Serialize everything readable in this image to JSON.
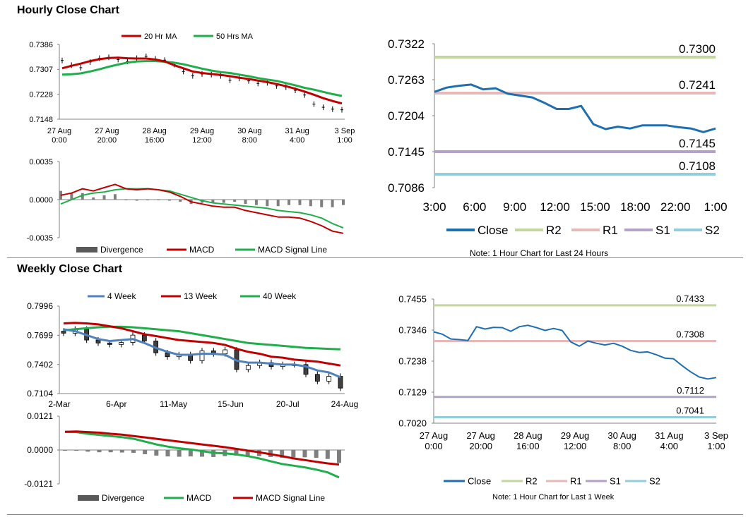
{
  "colors": {
    "red": "#c00000",
    "green": "#1fae4b",
    "blue": "#1f6fb0",
    "bluelight": "#4f81bd",
    "r2": "#c3d69b",
    "r1": "#e6b9b8",
    "s1": "#b3a2c7",
    "s2": "#93cddd",
    "gray": "#7f7f7f"
  },
  "hourly": {
    "title": "Hourly Close Chart",
    "note": "Note: 1 Hour Chart for Last 24 Hours"
  },
  "weekly": {
    "title": "Weekly Close Chart",
    "note": "Note: 1 Hour Chart for Last 1 Week"
  },
  "chart_data": [
    {
      "id": "hourly_price",
      "type": "line",
      "title": "",
      "legend": [
        "20 Hr MA",
        "50 Hrs MA"
      ],
      "legend_position": "top",
      "x_ticks": [
        [
          "27 Aug",
          "0:00"
        ],
        [
          "27 Aug",
          "20:00"
        ],
        [
          "28 Aug",
          "16:00"
        ],
        [
          "29 Aug",
          "12:00"
        ],
        [
          "30 Aug",
          "8:00"
        ],
        [
          "31 Aug",
          "4:00"
        ],
        [
          "3 Sep",
          "1:00"
        ]
      ],
      "y_ticks": [
        "0.7386",
        "0.7307",
        "0.7228",
        "0.7148"
      ],
      "ylim": [
        0.7148,
        0.7386
      ],
      "series": [
        {
          "name": "Close",
          "values": [
            0.7335,
            0.732,
            0.7312,
            0.733,
            0.7342,
            0.7345,
            0.7338,
            0.7332,
            0.7342,
            0.7348,
            0.734,
            0.7336,
            0.7322,
            0.73,
            0.7286,
            0.7292,
            0.729,
            0.7286,
            0.7272,
            0.7278,
            0.727,
            0.7262,
            0.7264,
            0.7254,
            0.725,
            0.724,
            0.7225,
            0.7196,
            0.7186,
            0.718,
            0.7178
          ]
        },
        {
          "name": "20 Hr MA",
          "values": [
            0.731,
            0.7318,
            0.7325,
            0.7333,
            0.7339,
            0.7343,
            0.7344,
            0.7342,
            0.7341,
            0.7341,
            0.7338,
            0.7332,
            0.732,
            0.731,
            0.73,
            0.7295,
            0.7292,
            0.7289,
            0.7285,
            0.728,
            0.7276,
            0.7271,
            0.7266,
            0.726,
            0.7253,
            0.7245,
            0.7236,
            0.7226,
            0.7215,
            0.7206,
            0.7198
          ]
        },
        {
          "name": "50 Hrs MA",
          "values": [
            0.729,
            0.7291,
            0.7294,
            0.73,
            0.7307,
            0.7315,
            0.7322,
            0.7328,
            0.7332,
            0.7333,
            0.7333,
            0.7331,
            0.7328,
            0.7323,
            0.7316,
            0.7309,
            0.7303,
            0.7298,
            0.7295,
            0.729,
            0.7285,
            0.7279,
            0.7274,
            0.727,
            0.7263,
            0.7256,
            0.7248,
            0.7242,
            0.7235,
            0.7228,
            0.7222
          ]
        }
      ]
    },
    {
      "id": "hourly_macd",
      "type": "line",
      "legend": [
        "Divergence",
        "MACD",
        "MACD Signal Line"
      ],
      "legend_position": "bottom",
      "y_ticks": [
        "0.0035",
        "0.0000",
        "-0.0035"
      ],
      "ylim": [
        -0.0035,
        0.0035
      ],
      "series": [
        {
          "name": "MACD",
          "values": [
            0.0004,
            0.0006,
            0.001,
            0.0008,
            0.0011,
            0.0014,
            0.001,
            0.0009,
            0.001,
            0.0009,
            0.0007,
            0.0003,
            -0.0002,
            -0.0004,
            -0.0006,
            -0.0007,
            -0.0007,
            -0.001,
            -0.0012,
            -0.0014,
            -0.0016,
            -0.0016,
            -0.0017,
            -0.002,
            -0.0024,
            -0.0029,
            -0.0031
          ]
        },
        {
          "name": "MACD Signal Line",
          "values": [
            -0.0004,
            0.0,
            0.0004,
            0.0006,
            0.0007,
            0.0009,
            0.001,
            0.001,
            0.001,
            0.0009,
            0.0008,
            0.0005,
            0.0002,
            -0.0001,
            -0.0003,
            -0.0004,
            -0.0005,
            -0.0006,
            -0.0007,
            -0.0008,
            -0.001,
            -0.0011,
            -0.0012,
            -0.0014,
            -0.0017,
            -0.0022,
            -0.0026
          ]
        },
        {
          "name": "Divergence",
          "values": [
            0.0008,
            0.0006,
            0.0006,
            0.0002,
            0.0004,
            0.0005,
            0.0,
            -0.0001,
            0.0,
            0.0,
            -0.0001,
            -0.0002,
            -0.0004,
            -0.0003,
            -0.0003,
            -0.0003,
            -0.0002,
            -0.0004,
            -0.0005,
            -0.0006,
            -0.0006,
            -0.0005,
            -0.0005,
            -0.0006,
            -0.0007,
            -0.0007,
            -0.0005
          ]
        }
      ]
    },
    {
      "id": "hourly_levels",
      "type": "line",
      "legend": [
        "Close",
        "R2",
        "R1",
        "S1",
        "S2"
      ],
      "legend_position": "bottom",
      "x_ticks": [
        "3:00",
        "6:00",
        "9:00",
        "12:00",
        "15:00",
        "18:00",
        "22:00",
        "1:00"
      ],
      "y_ticks": [
        "0.7322",
        "0.7263",
        "0.7204",
        "0.7145",
        "0.7086"
      ],
      "ylim": [
        0.7086,
        0.7322
      ],
      "levels": [
        {
          "name": "R2",
          "value": 0.73,
          "label": "0.7300"
        },
        {
          "name": "R1",
          "value": 0.7241,
          "label": "0.7241"
        },
        {
          "name": "S1",
          "value": 0.7145,
          "label": "0.7145"
        },
        {
          "name": "S2",
          "value": 0.7108,
          "label": "0.7108"
        }
      ],
      "series": [
        {
          "name": "Close",
          "values": [
            0.7243,
            0.725,
            0.7253,
            0.7255,
            0.7247,
            0.7249,
            0.724,
            0.7237,
            0.7234,
            0.7225,
            0.7215,
            0.7215,
            0.722,
            0.719,
            0.7182,
            0.7186,
            0.7183,
            0.7188,
            0.7188,
            0.7188,
            0.7185,
            0.7183,
            0.7177,
            0.7183
          ]
        }
      ]
    },
    {
      "id": "weekly_price",
      "type": "line",
      "legend": [
        "4 Week",
        "13 Week",
        "40 Week"
      ],
      "legend_position": "top",
      "x_ticks": [
        "2-Mar",
        "6-Apr",
        "11-May",
        "15-Jun",
        "20-Jul",
        "24-Aug"
      ],
      "y_ticks": [
        "0.7996",
        "0.7699",
        "0.7402",
        "0.7104"
      ],
      "ylim": [
        0.7104,
        0.7996
      ],
      "series": [
        {
          "name": "Close",
          "values": [
            0.772,
            0.776,
            0.765,
            0.762,
            0.7605,
            0.7625,
            0.77,
            0.764,
            0.752,
            0.748,
            0.75,
            0.744,
            0.754,
            0.751,
            0.755,
            0.735,
            0.739,
            0.742,
            0.738,
            0.74,
            0.74,
            0.73,
            0.723,
            0.728,
            0.716
          ]
        },
        {
          "name": "4 Week",
          "values": [
            0.776,
            0.774,
            0.77,
            0.766,
            0.764,
            0.765,
            0.766,
            0.762,
            0.757,
            0.753,
            0.75,
            0.75,
            0.751,
            0.751,
            0.75,
            0.744,
            0.742,
            0.742,
            0.741,
            0.74,
            0.74,
            0.738,
            0.734,
            0.732,
            0.727
          ]
        },
        {
          "name": "13 Week",
          "values": [
            0.782,
            0.7825,
            0.782,
            0.781,
            0.779,
            0.777,
            0.774,
            0.771,
            0.769,
            0.767,
            0.765,
            0.764,
            0.763,
            0.762,
            0.76,
            0.756,
            0.753,
            0.751,
            0.748,
            0.747,
            0.745,
            0.744,
            0.743,
            0.741,
            0.739
          ]
        },
        {
          "name": "40 Week",
          "values": [
            0.775,
            0.776,
            0.777,
            0.778,
            0.7785,
            0.7785,
            0.778,
            0.777,
            0.776,
            0.775,
            0.774,
            0.772,
            0.77,
            0.768,
            0.766,
            0.764,
            0.762,
            0.761,
            0.76,
            0.759,
            0.758,
            0.757,
            0.7565,
            0.756,
            0.7555
          ]
        }
      ]
    },
    {
      "id": "weekly_macd",
      "type": "line",
      "legend": [
        "Divergence",
        "MACD",
        "MACD Signal Line"
      ],
      "legend_position": "bottom",
      "y_ticks": [
        "0.0121",
        "0.0000",
        "-0.0121"
      ],
      "ylim": [
        -0.0121,
        0.0121
      ],
      "series": [
        {
          "name": "MACD",
          "values": [
            0.0065,
            0.0064,
            0.0058,
            0.0054,
            0.005,
            0.0046,
            0.004,
            0.003,
            0.002,
            0.0012,
            0.0006,
            0.0002,
            -0.0004,
            -0.001,
            -0.0012,
            -0.0016,
            -0.0022,
            -0.003,
            -0.004,
            -0.005,
            -0.0056,
            -0.0062,
            -0.007,
            -0.008,
            -0.0098
          ]
        },
        {
          "name": "MACD Signal Line",
          "values": [
            0.0065,
            0.0066,
            0.0064,
            0.0062,
            0.0058,
            0.0055,
            0.005,
            0.0045,
            0.004,
            0.0035,
            0.003,
            0.0025,
            0.002,
            0.0015,
            0.001,
            0.0004,
            -0.0002,
            -0.0008,
            -0.0015,
            -0.0022,
            -0.003,
            -0.0036,
            -0.0042,
            -0.0048,
            -0.0052
          ]
        },
        {
          "name": "Divergence",
          "values": [
            0.0,
            -0.0002,
            -0.0006,
            -0.0008,
            -0.0008,
            -0.0009,
            -0.001,
            -0.0015,
            -0.002,
            -0.0023,
            -0.0024,
            -0.0023,
            -0.0024,
            -0.0025,
            -0.0022,
            -0.002,
            -0.002,
            -0.0022,
            -0.0025,
            -0.0028,
            -0.0026,
            -0.0026,
            -0.0028,
            -0.0032,
            -0.0046
          ]
        }
      ]
    },
    {
      "id": "weekly_levels",
      "type": "line",
      "legend": [
        "Close",
        "R2",
        "R1",
        "S1",
        "S2"
      ],
      "legend_position": "bottom",
      "x_ticks": [
        [
          "27 Aug",
          "0:00"
        ],
        [
          "27 Aug",
          "20:00"
        ],
        [
          "28 Aug",
          "16:00"
        ],
        [
          "29 Aug",
          "12:00"
        ],
        [
          "30 Aug",
          "8:00"
        ],
        [
          "31 Aug",
          "4:00"
        ],
        [
          "3 Sep",
          "1:00"
        ]
      ],
      "y_ticks": [
        "0.7455",
        "0.7346",
        "0.7238",
        "0.7129",
        "0.7020"
      ],
      "ylim": [
        0.702,
        0.7455
      ],
      "levels": [
        {
          "name": "R2",
          "value": 0.7433,
          "label": "0.7433"
        },
        {
          "name": "R1",
          "value": 0.7308,
          "label": "0.7308"
        },
        {
          "name": "S1",
          "value": 0.7112,
          "label": "0.7112"
        },
        {
          "name": "S2",
          "value": 0.7041,
          "label": "0.7041"
        }
      ],
      "series": [
        {
          "name": "Close",
          "values": [
            0.734,
            0.7332,
            0.7315,
            0.7313,
            0.731,
            0.7358,
            0.735,
            0.7356,
            0.7355,
            0.7342,
            0.7358,
            0.7363,
            0.7355,
            0.7345,
            0.7352,
            0.7345,
            0.7305,
            0.729,
            0.7308,
            0.73,
            0.7294,
            0.73,
            0.729,
            0.7275,
            0.7268,
            0.727,
            0.726,
            0.7248,
            0.7246,
            0.7222,
            0.72,
            0.7182,
            0.7175,
            0.718
          ]
        }
      ]
    }
  ]
}
